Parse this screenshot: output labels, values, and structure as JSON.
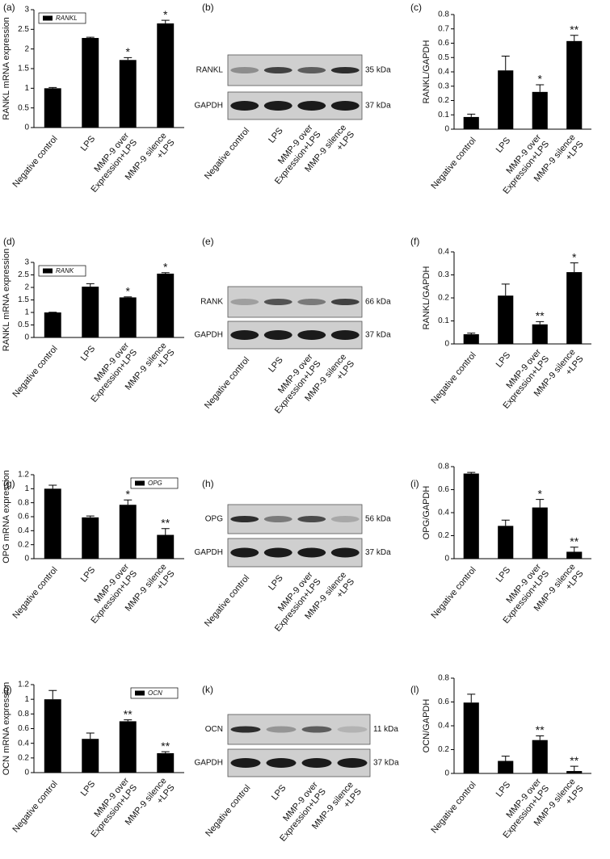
{
  "chart_data": [
    {
      "type": "bar",
      "label": "(a)",
      "ylabel": "RANKL mRNA expression",
      "legend": "upper left",
      "categories": [
        [
          "Negative control"
        ],
        [
          "LPS"
        ],
        [
          "MMP-9 over",
          "Expression+LPS"
        ],
        [
          "MMP-9 silence",
          "+LPS"
        ]
      ],
      "series": [
        {
          "name": "RANKL",
          "color": "#000000",
          "values": [
            1.0,
            2.28,
            1.72,
            2.65
          ],
          "errors": [
            0.02,
            0.02,
            0.06,
            0.08
          ],
          "annotations": [
            null,
            null,
            "*",
            "*"
          ]
        }
      ],
      "ylim": [
        0,
        3
      ],
      "yticks": [
        0,
        0.5,
        1,
        1.5,
        2,
        2.5,
        3
      ]
    },
    {
      "type": "bar",
      "label": "(c)",
      "ylabel": "RANKL/GAPDH",
      "categories": [
        [
          "Negative control"
        ],
        [
          "LPS"
        ],
        [
          "MMP-9 over",
          "Expression+LPS"
        ],
        [
          "MMP-9 silence",
          "+LPS"
        ]
      ],
      "color": "#000000",
      "values": [
        0.085,
        0.41,
        0.26,
        0.615
      ],
      "errors": [
        0.02,
        0.1,
        0.05,
        0.04
      ],
      "annotations": [
        null,
        null,
        "*",
        "**"
      ],
      "ylim": [
        0,
        0.8
      ],
      "yticks": [
        0,
        0.1,
        0.2,
        0.3,
        0.4,
        0.5,
        0.6,
        0.7,
        0.8
      ]
    },
    {
      "type": "bar",
      "label": "(d)",
      "ylabel": "RANKL mRNA expression",
      "legend": "upper left",
      "categories": [
        [
          "Negative control"
        ],
        [
          "LPS"
        ],
        [
          "MMP-9 over",
          "Expression+LPS"
        ],
        [
          "MMP-9 silence",
          "+LPS"
        ]
      ],
      "series": [
        {
          "name": "RANK",
          "color": "#000000",
          "values": [
            1.0,
            2.03,
            1.6,
            2.55
          ],
          "errors": [
            0.01,
            0.12,
            0.02,
            0.04
          ],
          "annotations": [
            null,
            null,
            "*",
            "*"
          ]
        }
      ],
      "ylim": [
        0,
        3
      ],
      "yticks": [
        0,
        0.5,
        1,
        1.5,
        2,
        2.5,
        3
      ]
    },
    {
      "type": "bar",
      "label": "(f)",
      "ylabel": "RANKL/GAPDH",
      "categories": [
        [
          "Negative control"
        ],
        [
          "LPS"
        ],
        [
          "MMP-9 over",
          "Expression+LPS"
        ],
        [
          "MMP-9 silence",
          "+LPS"
        ]
      ],
      "color": "#000000",
      "values": [
        0.042,
        0.21,
        0.085,
        0.312
      ],
      "errors": [
        0.005,
        0.05,
        0.012,
        0.04
      ],
      "annotations": [
        null,
        null,
        "**",
        "*"
      ],
      "ylim": [
        0,
        0.4
      ],
      "yticks": [
        0,
        0.1,
        0.2,
        0.3,
        0.4
      ]
    },
    {
      "type": "bar",
      "label": "(g)",
      "ylabel": "OPG mRNA expression",
      "legend": "upper right",
      "categories": [
        [
          "Negative control"
        ],
        [
          "LPS"
        ],
        [
          "MMP-9 over",
          "Expression+LPS"
        ],
        [
          "MMP-9 silence",
          "+LPS"
        ]
      ],
      "series": [
        {
          "name": "OPG",
          "color": "#000000",
          "values": [
            1.0,
            0.59,
            0.77,
            0.34
          ],
          "errors": [
            0.05,
            0.02,
            0.07,
            0.09
          ],
          "annotations": [
            null,
            null,
            "*",
            "**"
          ]
        }
      ],
      "ylim": [
        0,
        1.2
      ],
      "yticks": [
        0,
        0.2,
        0.4,
        0.6,
        0.8,
        1,
        1.2
      ]
    },
    {
      "type": "bar",
      "label": "(i)",
      "ylabel": "OPG/GAPDH",
      "categories": [
        [
          "Negative control"
        ],
        [
          "LPS"
        ],
        [
          "MMP-9 over",
          "Expression+LPS"
        ],
        [
          "MMP-9 silence",
          "+LPS"
        ]
      ],
      "color": "#000000",
      "values": [
        0.74,
        0.285,
        0.445,
        0.06
      ],
      "errors": [
        0.01,
        0.05,
        0.07,
        0.04
      ],
      "annotations": [
        null,
        null,
        "*",
        "**"
      ],
      "ylim": [
        0,
        0.8
      ],
      "yticks": [
        0,
        0.2,
        0.4,
        0.6,
        0.8
      ]
    },
    {
      "type": "bar",
      "label": "(j)",
      "ylabel": "OCN mRNA expression",
      "legend": "upper right",
      "categories": [
        [
          "Negative control"
        ],
        [
          "LPS"
        ],
        [
          "MMP-9 over",
          "Expression+LPS"
        ],
        [
          "MMP-9 silence",
          "+LPS"
        ]
      ],
      "series": [
        {
          "name": "OCN",
          "color": "#000000",
          "values": [
            1.0,
            0.46,
            0.7,
            0.265
          ],
          "errors": [
            0.12,
            0.08,
            0.02,
            0.02
          ],
          "annotations": [
            null,
            null,
            "**",
            "**"
          ]
        }
      ],
      "ylim": [
        0,
        1.2
      ],
      "yticks": [
        0,
        0.2,
        0.4,
        0.6,
        0.8,
        1,
        1.2
      ]
    },
    {
      "type": "bar",
      "label": "(l)",
      "ylabel": "OCN/GAPDH",
      "categories": [
        [
          "Negative control"
        ],
        [
          "LPS"
        ],
        [
          "MMP-9 over",
          "Expression+LPS"
        ],
        [
          "MMP-9 silence",
          "+LPS"
        ]
      ],
      "color": "#000000",
      "values": [
        0.595,
        0.105,
        0.28,
        0.02
      ],
      "errors": [
        0.07,
        0.04,
        0.035,
        0.04
      ],
      "annotations": [
        null,
        null,
        "**",
        "**"
      ],
      "ylim": [
        0,
        0.8
      ],
      "yticks": [
        0,
        0.2,
        0.4,
        0.6,
        0.8
      ]
    }
  ],
  "blots": [
    {
      "label": "(b)",
      "rows": [
        {
          "name": "RANKL",
          "kda": "35 kDa"
        },
        {
          "name": "GAPDH",
          "kda": "37 kDa"
        }
      ],
      "categories": [
        [
          "Negative control"
        ],
        [
          "LPS"
        ],
        [
          "MMP-9 over",
          "Expression+LPS"
        ],
        [
          "MMP-9 silence",
          "+LPS"
        ]
      ]
    },
    {
      "label": "(e)",
      "rows": [
        {
          "name": "RANK",
          "kda": "66 kDa"
        },
        {
          "name": "GAPDH",
          "kda": "37 kDa"
        }
      ],
      "categories": [
        [
          "Negative control"
        ],
        [
          "LPS"
        ],
        [
          "MMP-9 over",
          "Expression+LPS"
        ],
        [
          "MMP-9 silence",
          "+LPS"
        ]
      ]
    },
    {
      "label": "(h)",
      "rows": [
        {
          "name": "OPG",
          "kda": "56 kDa"
        },
        {
          "name": "GAPDH",
          "kda": "37 kDa"
        }
      ],
      "categories": [
        [
          "Negative control"
        ],
        [
          "LPS"
        ],
        [
          "MMP-9 over",
          "Expression+LPS"
        ],
        [
          "MMP-9 silence",
          "+LPS"
        ]
      ]
    },
    {
      "label": "(k)",
      "rows": [
        {
          "name": "OCN",
          "kda": "11 kDa"
        },
        {
          "name": "GAPDH",
          "kda": "37 kDa"
        }
      ],
      "categories": [
        [
          "Negative control"
        ],
        [
          "LPS"
        ],
        [
          "MMP-9 over",
          "Expression+LPS"
        ],
        [
          "MMP-9 silence",
          "+LPS"
        ]
      ]
    }
  ]
}
